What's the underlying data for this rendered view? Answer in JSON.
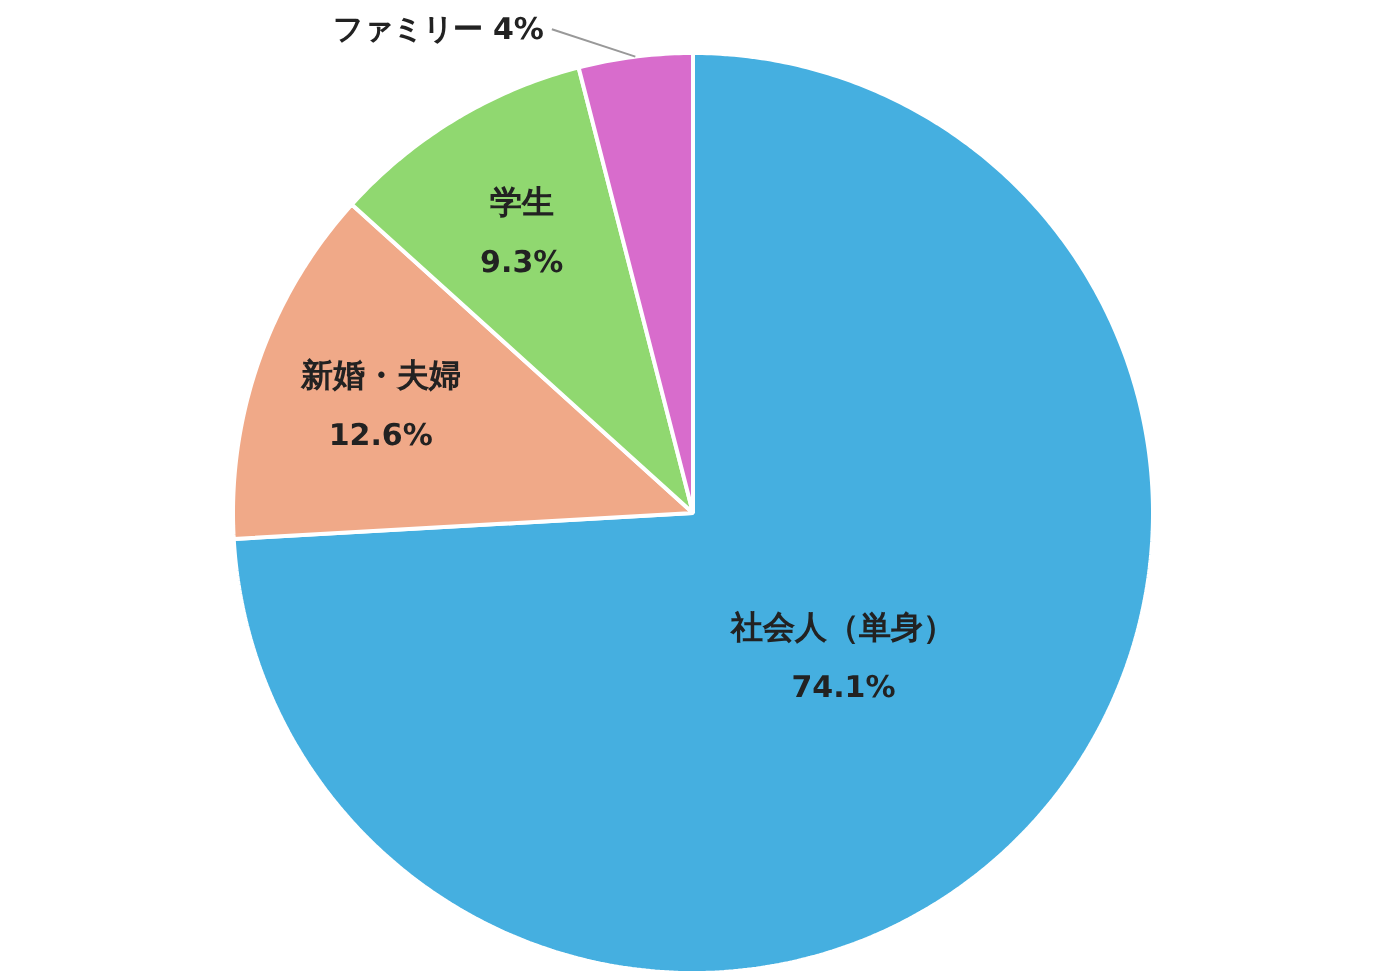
{
  "chart_data": {
    "type": "pie",
    "categories": [
      "社会人（単身）",
      "新婚・夫婦",
      "学生",
      "ファミリー"
    ],
    "values": [
      74.1,
      12.6,
      9.3,
      4
    ],
    "value_labels": [
      "74.1%",
      "12.6%",
      "9.3%",
      "4%"
    ],
    "colors": [
      "#45afe0",
      "#f0a988",
      "#90d870",
      "#d86ccc"
    ]
  }
}
